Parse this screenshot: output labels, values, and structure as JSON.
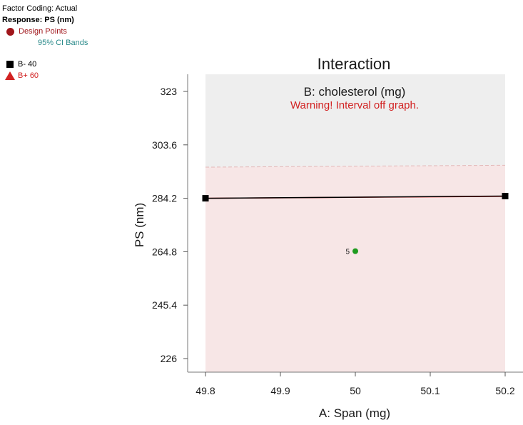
{
  "legend": {
    "factor_coding": "Factor Coding: Actual",
    "response": "Response: PS (nm)",
    "design_points": "Design Points",
    "ci_bands": "95% CI Bands",
    "b_low": "B- 40",
    "b_high": "B+ 60"
  },
  "chart_data": {
    "type": "line",
    "title": "Interaction",
    "subtitle": "B: cholesterol (mg)",
    "warning": "Warning! Interval off graph.",
    "xlabel": "A: Span (mg)",
    "ylabel": "PS (nm)",
    "xlim": [
      49.8,
      50.2
    ],
    "ylim": [
      226,
      323
    ],
    "x_ticks": [
      "49.8",
      "49.9",
      "50",
      "50.1",
      "50.2"
    ],
    "y_ticks": [
      "226",
      "245.4",
      "264.8",
      "284.2",
      "303.6",
      "323"
    ],
    "series": [
      {
        "name": "B- 40",
        "color": "#000000",
        "marker": "square",
        "x": [
          49.8,
          50.2
        ],
        "y": [
          284.2,
          285.0
        ]
      },
      {
        "name": "B+ 60",
        "color": "#d22222",
        "marker": "triangle",
        "x": [
          49.8,
          50.2
        ],
        "y": [
          284.2,
          284.9
        ]
      }
    ],
    "ci_band": {
      "upper": [
        295.5,
        296.2
      ],
      "colors": {
        "upper_region": "#eeeeee",
        "band": "#f7e6e6"
      }
    },
    "design_points": [
      {
        "x": 50.0,
        "y": 265.0,
        "label": "5",
        "color": "#1e9a1e"
      }
    ]
  }
}
